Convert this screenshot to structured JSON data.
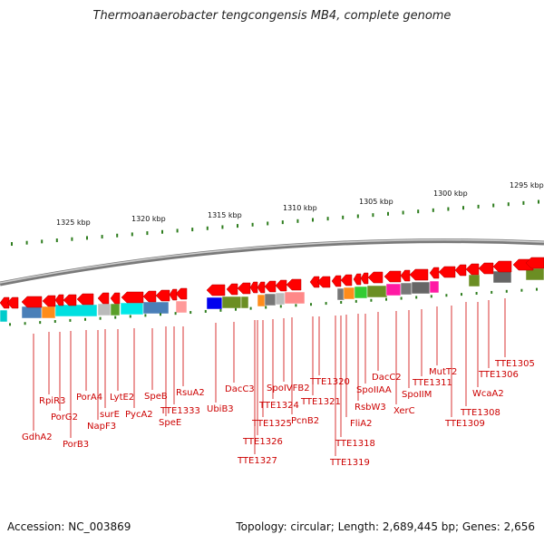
{
  "header": {
    "title": "Thermoanaerobacter tengcongensis MB4, complete genome"
  },
  "footer": {
    "accession": "Accession: NC_003869",
    "summary": "Topology: circular; Length: 2,689,445 bp; Genes: 2,656"
  },
  "colors": {
    "gene_arrow": "#ff0000",
    "ruler_tick": "#2e7d1e",
    "backbone": "#888888",
    "label_line": "#d00000",
    "label_text": "#cc0000"
  },
  "scale": {
    "ticks": [
      "1325 kbp",
      "1320 kbp",
      "1315 kbp",
      "1310 kbp",
      "1305 kbp",
      "1300 kbp",
      "1295 kbp"
    ]
  },
  "genes": [
    {
      "label": "GdhA2"
    },
    {
      "label": "RpiR3"
    },
    {
      "label": "PorG2"
    },
    {
      "label": "PorB3"
    },
    {
      "label": "PorA4"
    },
    {
      "label": "NapF3"
    },
    {
      "label": "surE"
    },
    {
      "label": "LytE2"
    },
    {
      "label": "PycA2"
    },
    {
      "label": "SpeB"
    },
    {
      "label": "SpeE"
    },
    {
      "label": "TTE1333"
    },
    {
      "label": "RsuA2"
    },
    {
      "label": "UbiB3"
    },
    {
      "label": "DacC3"
    },
    {
      "label": "TTE1327"
    },
    {
      "label": "TTE1326"
    },
    {
      "label": "TTE1325"
    },
    {
      "label": "TTE1324"
    },
    {
      "label": "SpoIVFB2"
    },
    {
      "label": "PcnB2"
    },
    {
      "label": "TTE1321"
    },
    {
      "label": "TTE1320"
    },
    {
      "label": "TTE1319"
    },
    {
      "label": "TTE1318"
    },
    {
      "label": "FliA2"
    },
    {
      "label": "RsbW3"
    },
    {
      "label": "SpoIIAA"
    },
    {
      "label": "DacC2"
    },
    {
      "label": "XerC"
    },
    {
      "label": "SpoIIM"
    },
    {
      "label": "TTE1311"
    },
    {
      "label": "MutT2"
    },
    {
      "label": "TTE1309"
    },
    {
      "label": "TTE1308"
    },
    {
      "label": "WcaA2"
    },
    {
      "label": "TTE1306"
    },
    {
      "label": "TTE1305"
    }
  ]
}
